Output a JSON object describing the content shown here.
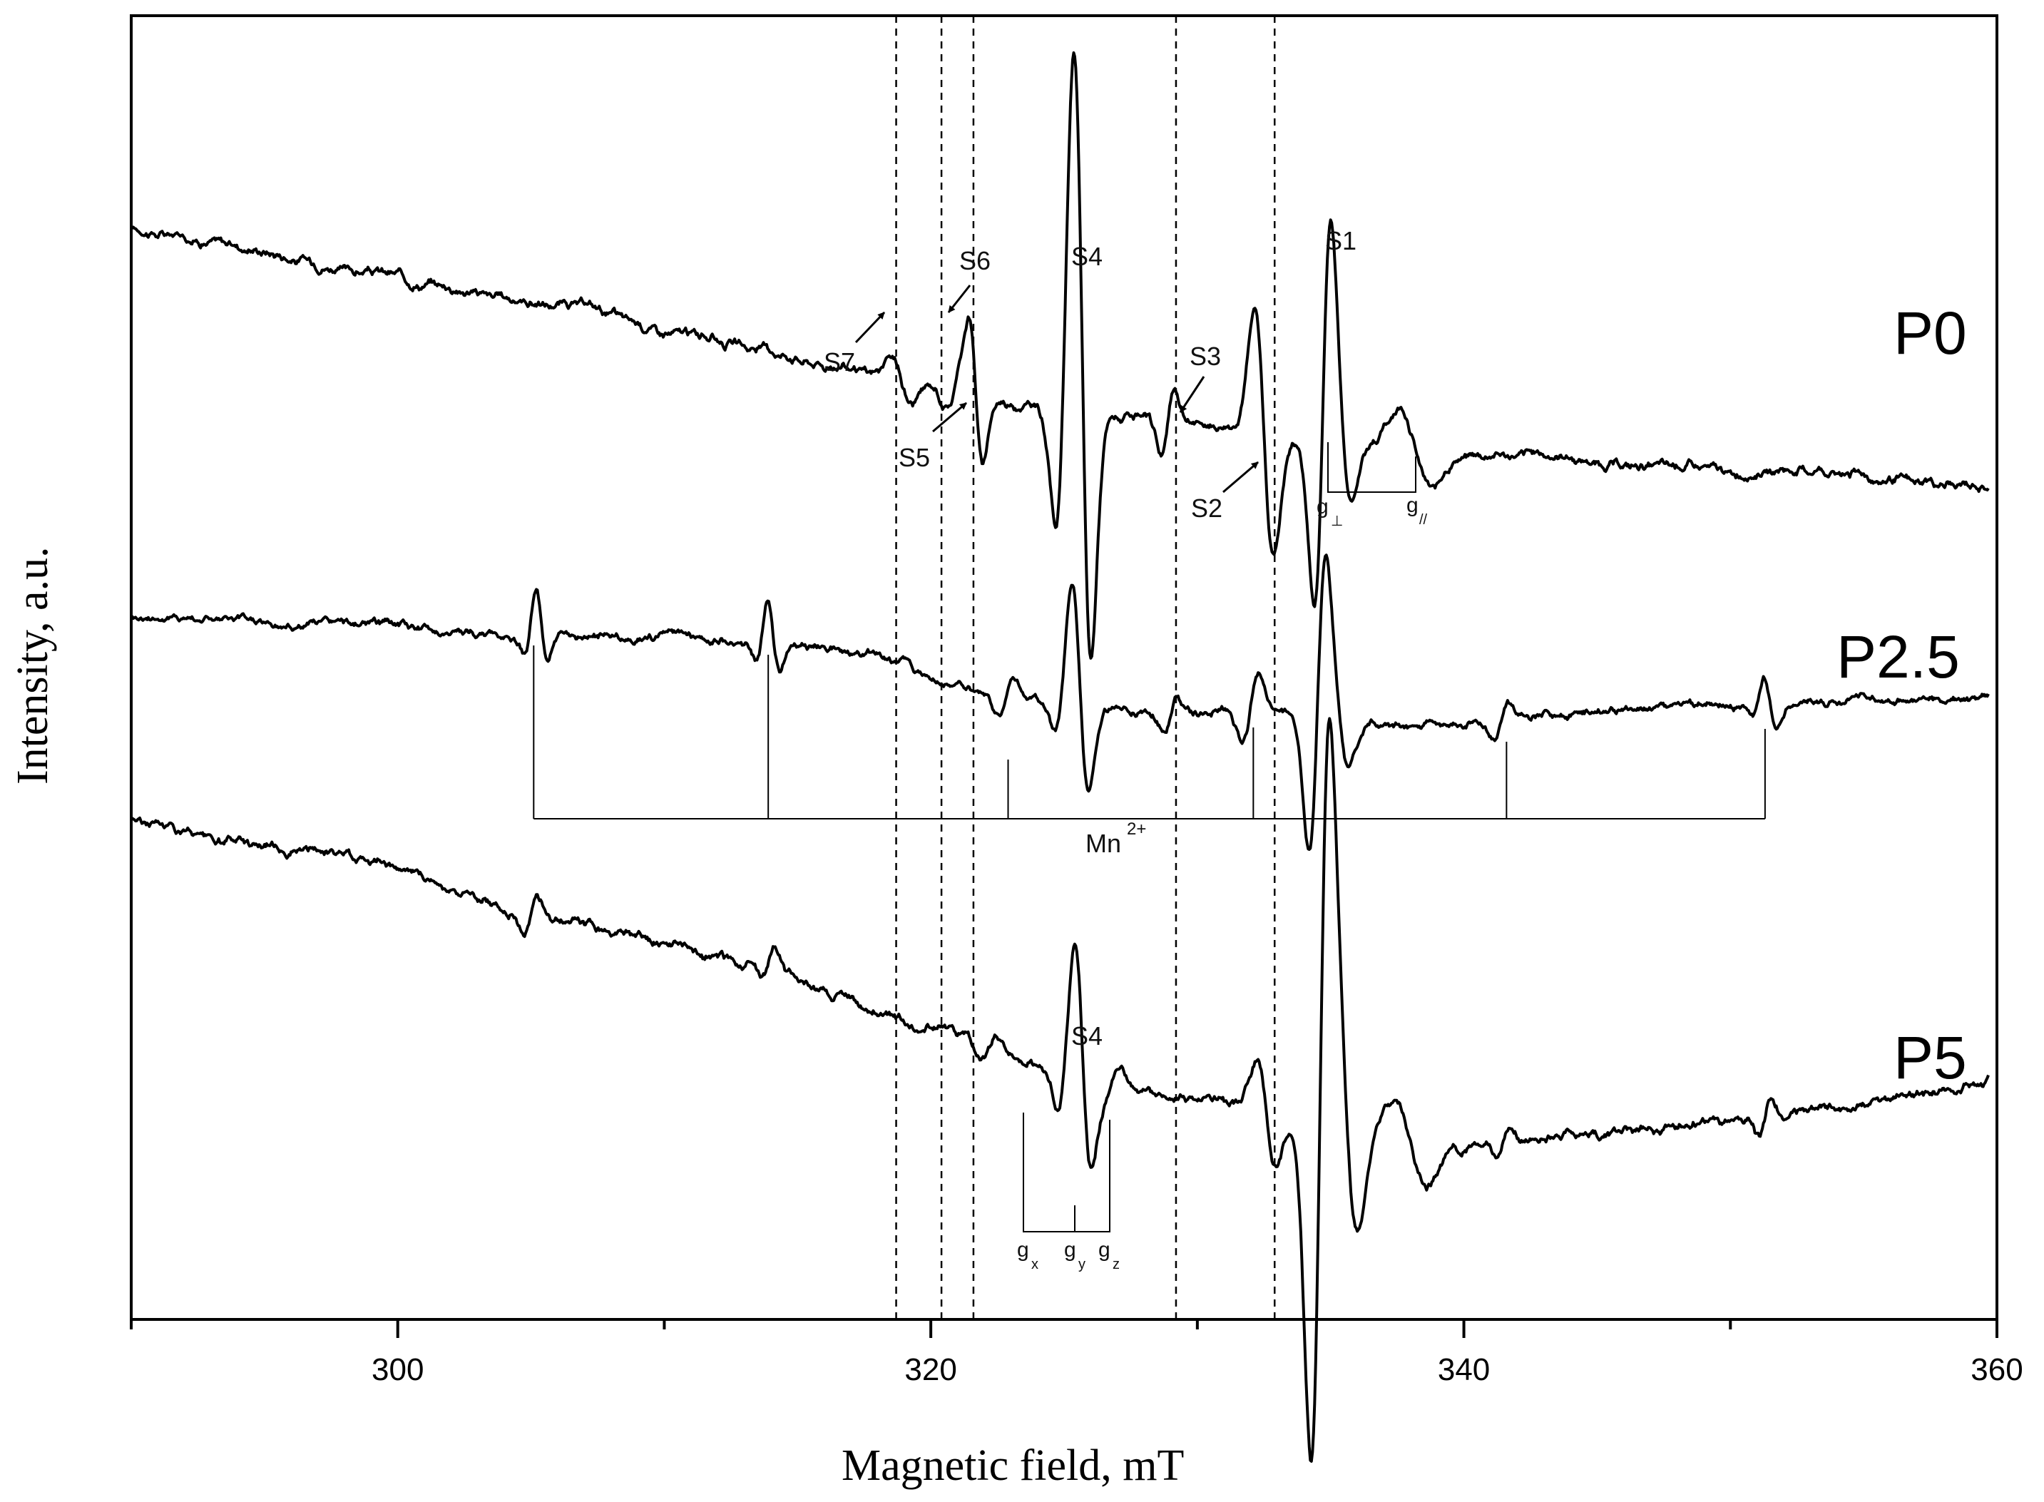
{
  "chart_data": {
    "type": "line",
    "title": "",
    "xlabel": "Magnetic field, mT",
    "ylabel": "Intensity, a.u.",
    "xlim": [
      290,
      360
    ],
    "x_ticks": [
      {
        "value": 300,
        "label": "300"
      },
      {
        "value": 320,
        "label": "320"
      },
      {
        "value": 340,
        "label": "340"
      },
      {
        "value": 360,
        "label": "360"
      }
    ],
    "x_minor_ticks": [
      290,
      310,
      330,
      350
    ],
    "grid": false,
    "legend": "none",
    "line_color": "#000000",
    "reference_fields": [
      318.7,
      320.4,
      321.6,
      329.2,
      332.9
    ],
    "series": [
      {
        "name": "P0",
        "x_range": [
          290,
          359.7
        ],
        "baseline": [
          [
            290,
            0.95
          ],
          [
            300,
            0.83
          ],
          [
            310,
            0.7
          ],
          [
            316,
            0.62
          ],
          [
            322,
            0.52
          ],
          [
            330,
            0.45
          ],
          [
            337,
            0.4
          ],
          [
            345,
            0.37
          ],
          [
            359.7,
            0.3
          ]
        ],
        "features": [
          {
            "x": 318.9,
            "amp": -0.05,
            "w": 0.35
          },
          {
            "x": 320.9,
            "amp": 0.05,
            "w": 0.3
          },
          {
            "x": 321.7,
            "amp": -0.17,
            "w": 0.25
          },
          {
            "x": 325.0,
            "amp": 0.3,
            "w": 0.3
          },
          {
            "x": 325.7,
            "amp": -0.62,
            "w": 0.3
          },
          {
            "x": 328.9,
            "amp": 0.08,
            "w": 0.25
          },
          {
            "x": 332.5,
            "amp": -0.3,
            "w": 0.35
          },
          {
            "x": 334.7,
            "amp": 0.42,
            "w": 0.3
          },
          {
            "x": 335.4,
            "amp": -0.14,
            "w": 0.35
          },
          {
            "x": 338.2,
            "amp": -0.1,
            "w": 0.6
          }
        ]
      },
      {
        "name": "P2.5",
        "x_range": [
          290,
          359.7
        ],
        "baseline": [
          [
            290,
            0.08
          ],
          [
            300,
            0.05
          ],
          [
            305,
            0.02
          ],
          [
            315,
            0.0
          ],
          [
            318,
            -0.03
          ],
          [
            322,
            -0.15
          ],
          [
            328,
            -0.2
          ],
          [
            333,
            -0.2
          ],
          [
            336,
            -0.25
          ],
          [
            345,
            -0.2
          ],
          [
            359.7,
            -0.15
          ]
        ],
        "features": [
          {
            "x": 305.1,
            "amp": 0.1,
            "w": 0.25
          },
          {
            "x": 305.3,
            "amp": -0.12,
            "w": 0.25
          },
          {
            "x": 313.8,
            "amp": 0.1,
            "w": 0.25
          },
          {
            "x": 314.0,
            "amp": -0.12,
            "w": 0.25
          },
          {
            "x": 322.8,
            "amp": 0.05,
            "w": 0.3
          },
          {
            "x": 325.0,
            "amp": 0.1,
            "w": 0.3
          },
          {
            "x": 325.6,
            "amp": -0.25,
            "w": 0.3
          },
          {
            "x": 329.0,
            "amp": 0.05,
            "w": 0.25
          },
          {
            "x": 332.0,
            "amp": 0.1,
            "w": 0.3
          },
          {
            "x": 334.5,
            "amp": 0.38,
            "w": 0.3
          },
          {
            "x": 335.3,
            "amp": -0.12,
            "w": 0.35
          },
          {
            "x": 341.4,
            "amp": 0.06,
            "w": 0.25
          },
          {
            "x": 351.2,
            "amp": 0.06,
            "w": 0.25
          },
          {
            "x": 351.4,
            "amp": -0.08,
            "w": 0.25
          }
        ]
      },
      {
        "name": "P5",
        "x_range": [
          290,
          359.7
        ],
        "baseline": [
          [
            290,
            -0.22
          ],
          [
            300,
            -0.35
          ],
          [
            306,
            -0.48
          ],
          [
            314,
            -0.6
          ],
          [
            320,
            -0.75
          ],
          [
            325,
            -0.85
          ],
          [
            330,
            -0.93
          ],
          [
            333,
            -0.98
          ],
          [
            340,
            -1.05
          ],
          [
            350,
            -0.98
          ],
          [
            359.7,
            -0.88
          ]
        ],
        "features": [
          {
            "x": 305.0,
            "amp": 0.05,
            "w": 0.25
          },
          {
            "x": 313.9,
            "amp": 0.04,
            "w": 0.25
          },
          {
            "x": 322.2,
            "amp": 0.04,
            "w": 0.3
          },
          {
            "x": 325.1,
            "amp": 0.1,
            "w": 0.3
          },
          {
            "x": 325.7,
            "amp": -0.22,
            "w": 0.3
          },
          {
            "x": 326.8,
            "amp": 0.05,
            "w": 0.35
          },
          {
            "x": 332.6,
            "amp": -0.12,
            "w": 0.35
          },
          {
            "x": 334.6,
            "amp": 0.85,
            "w": 0.33
          },
          {
            "x": 335.6,
            "amp": -0.25,
            "w": 0.4
          },
          {
            "x": 338.0,
            "amp": -0.1,
            "w": 0.6
          },
          {
            "x": 341.5,
            "amp": 0.04,
            "w": 0.25
          },
          {
            "x": 351.3,
            "amp": 0.05,
            "w": 0.25
          }
        ]
      }
    ],
    "mn_marker": {
      "label_main": "Mn",
      "label_sup": "2+",
      "lines": [
        305.1,
        313.9,
        322.9,
        332.1,
        341.6,
        351.3
      ]
    },
    "annotations": [
      {
        "text": "S1"
      },
      {
        "text": "S2"
      },
      {
        "text": "S3"
      },
      {
        "text": "S4"
      },
      {
        "text": "S5"
      },
      {
        "text": "S6"
      },
      {
        "text": "S7"
      },
      {
        "text": "S4"
      }
    ],
    "g_labels": {
      "g_perp_main": "g",
      "g_perp_sub": "⊥",
      "g_par_main": "g",
      "g_par_sub": "//",
      "gx_main": "g",
      "gx_sub": "x",
      "gy_main": "g",
      "gy_sub": "y",
      "gz_main": "g",
      "gz_sub": "z"
    }
  }
}
